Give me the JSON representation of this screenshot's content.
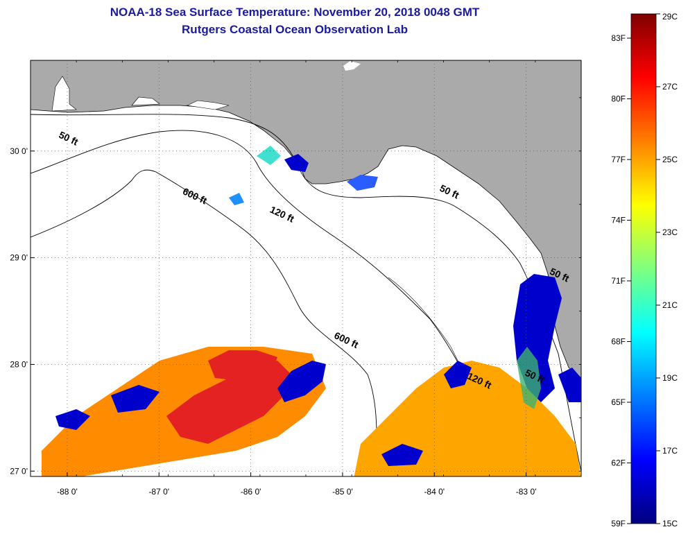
{
  "header": {
    "title": "NOAA-18 Sea Surface Temperature:  November 20, 2018 0048 GMT",
    "subtitle": "Rutgers Coastal Ocean Observation Lab"
  },
  "map": {
    "lon_range": [
      -88.4,
      -82.4
    ],
    "lat_range": [
      26.95,
      30.85
    ],
    "lon_ticks": [
      {
        "value": -88,
        "label": "-88 0'"
      },
      {
        "value": -87,
        "label": "-87 0'"
      },
      {
        "value": -86,
        "label": "-86 0'"
      },
      {
        "value": -85,
        "label": "-85 0'"
      },
      {
        "value": -84,
        "label": "-84 0'"
      },
      {
        "value": -83,
        "label": "-83 0'"
      }
    ],
    "lat_ticks": [
      {
        "value": 30,
        "label": "30 0'"
      },
      {
        "value": 29,
        "label": "29 0'"
      },
      {
        "value": 28,
        "label": "28 0'"
      },
      {
        "value": 27,
        "label": "27 0'"
      }
    ],
    "grid": "dotted",
    "land_color": "#aaaaaa",
    "contour_labels": [
      {
        "text": "50 ft",
        "lon": -88.1,
        "lat": 30.13
      },
      {
        "text": "50 ft",
        "lon": -83.95,
        "lat": 29.63
      },
      {
        "text": "600 ft",
        "lon": -86.75,
        "lat": 29.6
      },
      {
        "text": "120 ft",
        "lon": -85.8,
        "lat": 29.43
      },
      {
        "text": "600 ft",
        "lon": -85.1,
        "lat": 28.25
      },
      {
        "text": "120 ft",
        "lon": -83.65,
        "lat": 27.87
      },
      {
        "text": "50 ft",
        "lon": -83.02,
        "lat": 27.9
      },
      {
        "text": "50 ft",
        "lon": -82.75,
        "lat": 28.85
      }
    ]
  },
  "colorbar": {
    "min_c": 15,
    "max_c": 29,
    "celsius_labels": [
      "29C",
      "27C",
      "25C",
      "23C",
      "21C",
      "19C",
      "17C",
      "15C"
    ],
    "celsius_values": [
      29,
      27,
      25,
      23,
      21,
      19,
      17,
      15
    ],
    "fahrenheit_labels": [
      "83F",
      "80F",
      "77F",
      "74F",
      "71F",
      "68F",
      "65F",
      "62F",
      "59F"
    ],
    "fahrenheit_values": [
      83,
      80,
      77,
      74,
      71,
      68,
      65,
      62,
      59
    ],
    "colors": [
      "#00007f",
      "#0000ff",
      "#007fff",
      "#00ffff",
      "#7fff7f",
      "#ffff00",
      "#ff7f00",
      "#ff0000",
      "#7f0000"
    ]
  }
}
